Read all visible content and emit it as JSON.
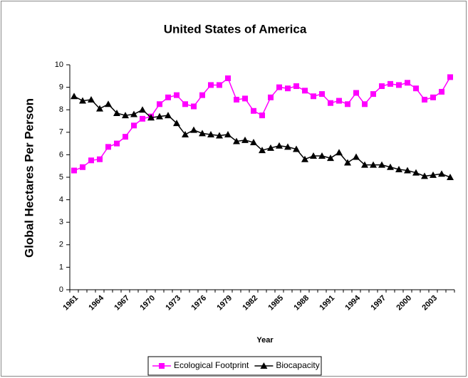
{
  "chart_data": {
    "type": "line",
    "title": "United States of America",
    "x_label": "Year",
    "y_label": "Global Hectares Per Person",
    "categories": [
      "1961",
      null,
      null,
      "1964",
      null,
      null,
      "1967",
      null,
      null,
      "1970",
      null,
      null,
      "1973",
      null,
      null,
      "1976",
      null,
      null,
      "1979",
      null,
      null,
      "1982",
      null,
      null,
      "1985",
      null,
      null,
      "1988",
      null,
      null,
      "1991",
      null,
      null,
      "1994",
      null,
      null,
      "1997",
      null,
      null,
      "2000",
      null,
      null,
      "2003",
      null,
      null
    ],
    "series": [
      {
        "name": "Ecological Footprint",
        "color": "#ff00ff",
        "marker": "square",
        "values": [
          5.3,
          5.45,
          5.75,
          5.8,
          6.35,
          6.5,
          6.8,
          7.3,
          7.6,
          7.7,
          8.25,
          8.55,
          8.65,
          8.25,
          8.15,
          8.65,
          9.1,
          9.1,
          9.4,
          8.45,
          8.5,
          7.95,
          7.75,
          8.55,
          9.0,
          8.95,
          9.05,
          8.85,
          8.6,
          8.7,
          8.3,
          8.4,
          8.25,
          8.75,
          8.25,
          8.7,
          9.05,
          9.15,
          9.1,
          9.2,
          8.95,
          8.45,
          8.55,
          8.8,
          9.45
        ]
      },
      {
        "name": "Biocapacity",
        "color": "#000000",
        "marker": "triangle",
        "values": [
          8.6,
          8.4,
          8.45,
          8.05,
          8.25,
          7.85,
          7.75,
          7.8,
          8.0,
          7.65,
          7.7,
          7.75,
          7.4,
          6.9,
          7.1,
          6.95,
          6.9,
          6.85,
          6.9,
          6.6,
          6.65,
          6.55,
          6.2,
          6.3,
          6.4,
          6.35,
          6.25,
          5.8,
          5.95,
          5.95,
          5.85,
          6.1,
          5.65,
          5.9,
          5.55,
          5.55,
          5.55,
          5.45,
          5.35,
          5.3,
          5.2,
          5.05,
          5.1,
          5.15,
          5.0
        ]
      }
    ],
    "ylim": [
      0,
      10
    ],
    "yticks": [
      0,
      1,
      2,
      3,
      4,
      5,
      6,
      7,
      8,
      9,
      10
    ],
    "grid": false,
    "legend": "bottom"
  }
}
